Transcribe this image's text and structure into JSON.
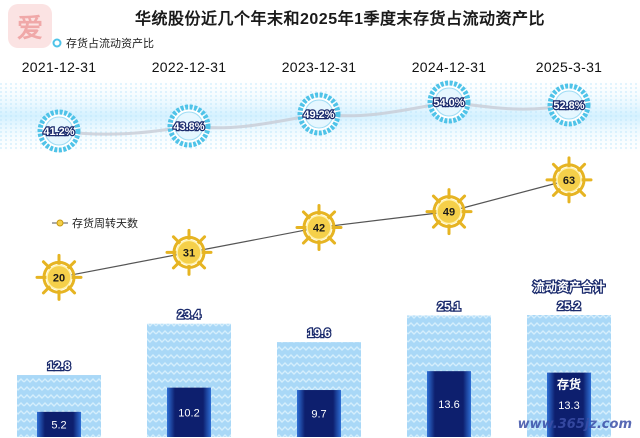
{
  "title": "华统股份近几个年末和2025年1季度末存货占流动资产比",
  "legend_ratio": "存货占流动资产比",
  "legend_turnover": "存货周转天数",
  "total_annotation": "流动资产合计",
  "inventory_annotation": "存货",
  "watermark": "www.365jz.com",
  "colors": {
    "ring": "#4fc3e8",
    "bar_light": "#a9d8f7",
    "bar_dark": "#0d1f6e",
    "line": "#555555",
    "wheel": "#f5d04a"
  },
  "chart_data": {
    "type": "bar",
    "categories": [
      "2021-12-31",
      "2022-12-31",
      "2023-12-31",
      "2024-12-31",
      "2025-3-31"
    ],
    "series": [
      {
        "name": "流动资产合计",
        "values": [
          12.8,
          23.4,
          19.6,
          25.1,
          25.2
        ]
      },
      {
        "name": "存货",
        "values": [
          5.2,
          10.2,
          9.7,
          13.6,
          13.3
        ]
      },
      {
        "name": "存货占流动资产比",
        "values": [
          "41.2%",
          "43.8%",
          "49.2%",
          "54.0%",
          "52.8%"
        ]
      },
      {
        "name": "存货周转天数",
        "values": [
          20,
          31,
          42,
          49,
          63
        ]
      }
    ],
    "turnover_ylim": [
      10,
      70
    ],
    "bar_ylim": [
      0,
      25.2
    ]
  }
}
